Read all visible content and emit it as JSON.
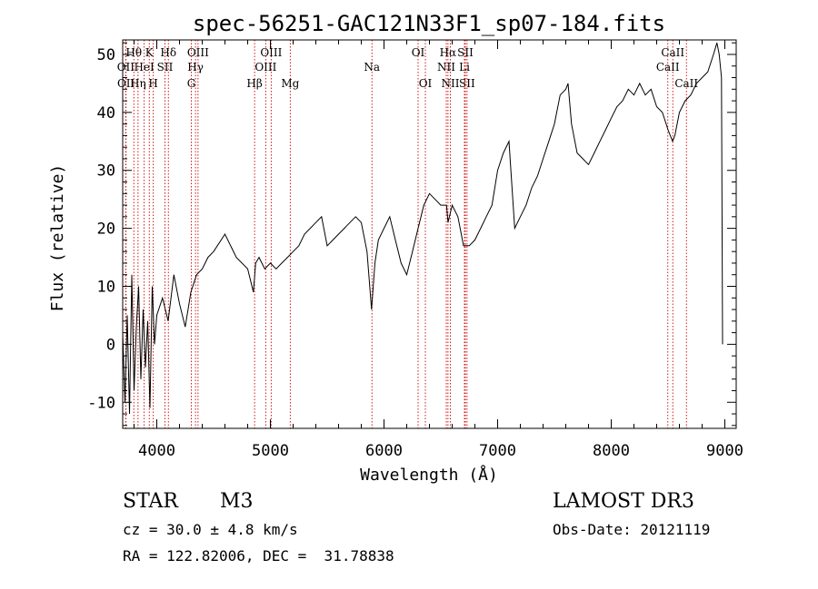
{
  "chart_data": {
    "type": "line",
    "title": "spec-56251-GAC121N33F1_sp07-184.fits",
    "xlabel": "Wavelength (Å)",
    "ylabel": "Flux (relative)",
    "xlim": [
      3700,
      9100
    ],
    "ylim": [
      -14.5,
      52.5
    ],
    "xticks": [
      4000,
      5000,
      6000,
      7000,
      8000,
      9000
    ],
    "yticks": [
      -10,
      0,
      10,
      20,
      30,
      40,
      50
    ],
    "grid": false,
    "series": [
      {
        "name": "flux",
        "x": [
          3700,
          3720,
          3740,
          3760,
          3780,
          3800,
          3820,
          3840,
          3860,
          3880,
          3900,
          3920,
          3940,
          3960,
          3980,
          4000,
          4050,
          4100,
          4150,
          4200,
          4250,
          4300,
          4350,
          4400,
          4450,
          4500,
          4600,
          4700,
          4800,
          4850,
          4870,
          4900,
          4950,
          5000,
          5050,
          5100,
          5150,
          5200,
          5250,
          5300,
          5350,
          5400,
          5450,
          5500,
          5550,
          5600,
          5650,
          5700,
          5750,
          5800,
          5850,
          5890,
          5920,
          5950,
          6000,
          6050,
          6100,
          6150,
          6200,
          6250,
          6300,
          6350,
          6400,
          6450,
          6500,
          6550,
          6563,
          6600,
          6650,
          6700,
          6750,
          6800,
          6850,
          6900,
          6950,
          7000,
          7050,
          7100,
          7150,
          7200,
          7250,
          7300,
          7350,
          7400,
          7450,
          7500,
          7550,
          7600,
          7620,
          7650,
          7700,
          7750,
          7800,
          7850,
          7900,
          7950,
          8000,
          8050,
          8100,
          8150,
          8200,
          8250,
          8300,
          8350,
          8400,
          8450,
          8500,
          8540,
          8560,
          8600,
          8650,
          8700,
          8750,
          8800,
          8850,
          8900,
          8930,
          8950,
          8970,
          8980
        ],
        "values": [
          2,
          -10,
          5,
          -12,
          12,
          -8,
          3,
          10,
          -6,
          6,
          -4,
          4,
          -11,
          10,
          0,
          5,
          8,
          4,
          12,
          7,
          3,
          9,
          12,
          13,
          15,
          16,
          19,
          15,
          13,
          9,
          14,
          15,
          13,
          14,
          13,
          14,
          15,
          16,
          17,
          19,
          20,
          21,
          22,
          17,
          18,
          19,
          20,
          21,
          22,
          21,
          16,
          6,
          14,
          18,
          20,
          22,
          18,
          14,
          12,
          16,
          20,
          24,
          26,
          25,
          24,
          24,
          21,
          24,
          22,
          17,
          17,
          18,
          20,
          22,
          24,
          30,
          33,
          35,
          20,
          22,
          24,
          27,
          29,
          32,
          35,
          38,
          43,
          44,
          45,
          38,
          33,
          32,
          31,
          33,
          35,
          37,
          39,
          41,
          42,
          44,
          43,
          45,
          43,
          44,
          41,
          40,
          37,
          35,
          36,
          40,
          42,
          43,
          45,
          46,
          47,
          50,
          52,
          50,
          46,
          0
        ]
      }
    ],
    "lines_top": [
      {
        "name": "Hθ",
        "x": 3798,
        "row": 1
      },
      {
        "name": "OII",
        "x": 3727,
        "row": 2
      },
      {
        "name": "OII",
        "x": 3729,
        "row": 3
      },
      {
        "name": "K",
        "x": 3934,
        "row": 1
      },
      {
        "name": "HeI",
        "x": 3889,
        "row": 2
      },
      {
        "name": "Hη",
        "x": 3835,
        "row": 3
      },
      {
        "name": "SII",
        "x": 4072,
        "row": 2
      },
      {
        "name": "H",
        "x": 3969,
        "row": 3
      },
      {
        "name": "Hδ",
        "x": 4102,
        "row": 1
      },
      {
        "name": "OIII",
        "x": 4363,
        "row": 1
      },
      {
        "name": "Hγ",
        "x": 4341,
        "row": 2
      },
      {
        "name": "G",
        "x": 4304,
        "row": 3
      },
      {
        "name": "Hβ",
        "x": 4861,
        "row": 3
      },
      {
        "name": "OIII",
        "x": 5007,
        "row": 1
      },
      {
        "name": "OIII",
        "x": 4959,
        "row": 2
      },
      {
        "name": "Mg",
        "x": 5175,
        "row": 3
      },
      {
        "name": "Na",
        "x": 5894,
        "row": 2
      },
      {
        "name": "OI",
        "x": 6300,
        "row": 1
      },
      {
        "name": "OI",
        "x": 6364,
        "row": 3
      },
      {
        "name": "Hα",
        "x": 6563,
        "row": 1
      },
      {
        "name": "NII",
        "x": 6548,
        "row": 2
      },
      {
        "name": "NII",
        "x": 6584,
        "row": 3
      },
      {
        "name": "SII",
        "x": 6716,
        "row": 1
      },
      {
        "name": "Li",
        "x": 6708,
        "row": 2
      },
      {
        "name": "SII",
        "x": 6731,
        "row": 3
      },
      {
        "name": "CaII",
        "x": 8542,
        "row": 1
      },
      {
        "name": "CaII",
        "x": 8498,
        "row": 2
      },
      {
        "name": "CaII",
        "x": 8662,
        "row": 3
      }
    ]
  },
  "info": {
    "object_class": "STAR",
    "subclass": "M3",
    "survey": "LAMOST DR3",
    "cz": "cz = 30.0 ± 4.8 km/s",
    "obs_date": "Obs-Date: 20121119",
    "radec": "RA = 122.82006, DEC =  31.78838"
  },
  "colors": {
    "spectrum": "#000000",
    "line_marker": "#cc0000",
    "axis": "#000000"
  }
}
